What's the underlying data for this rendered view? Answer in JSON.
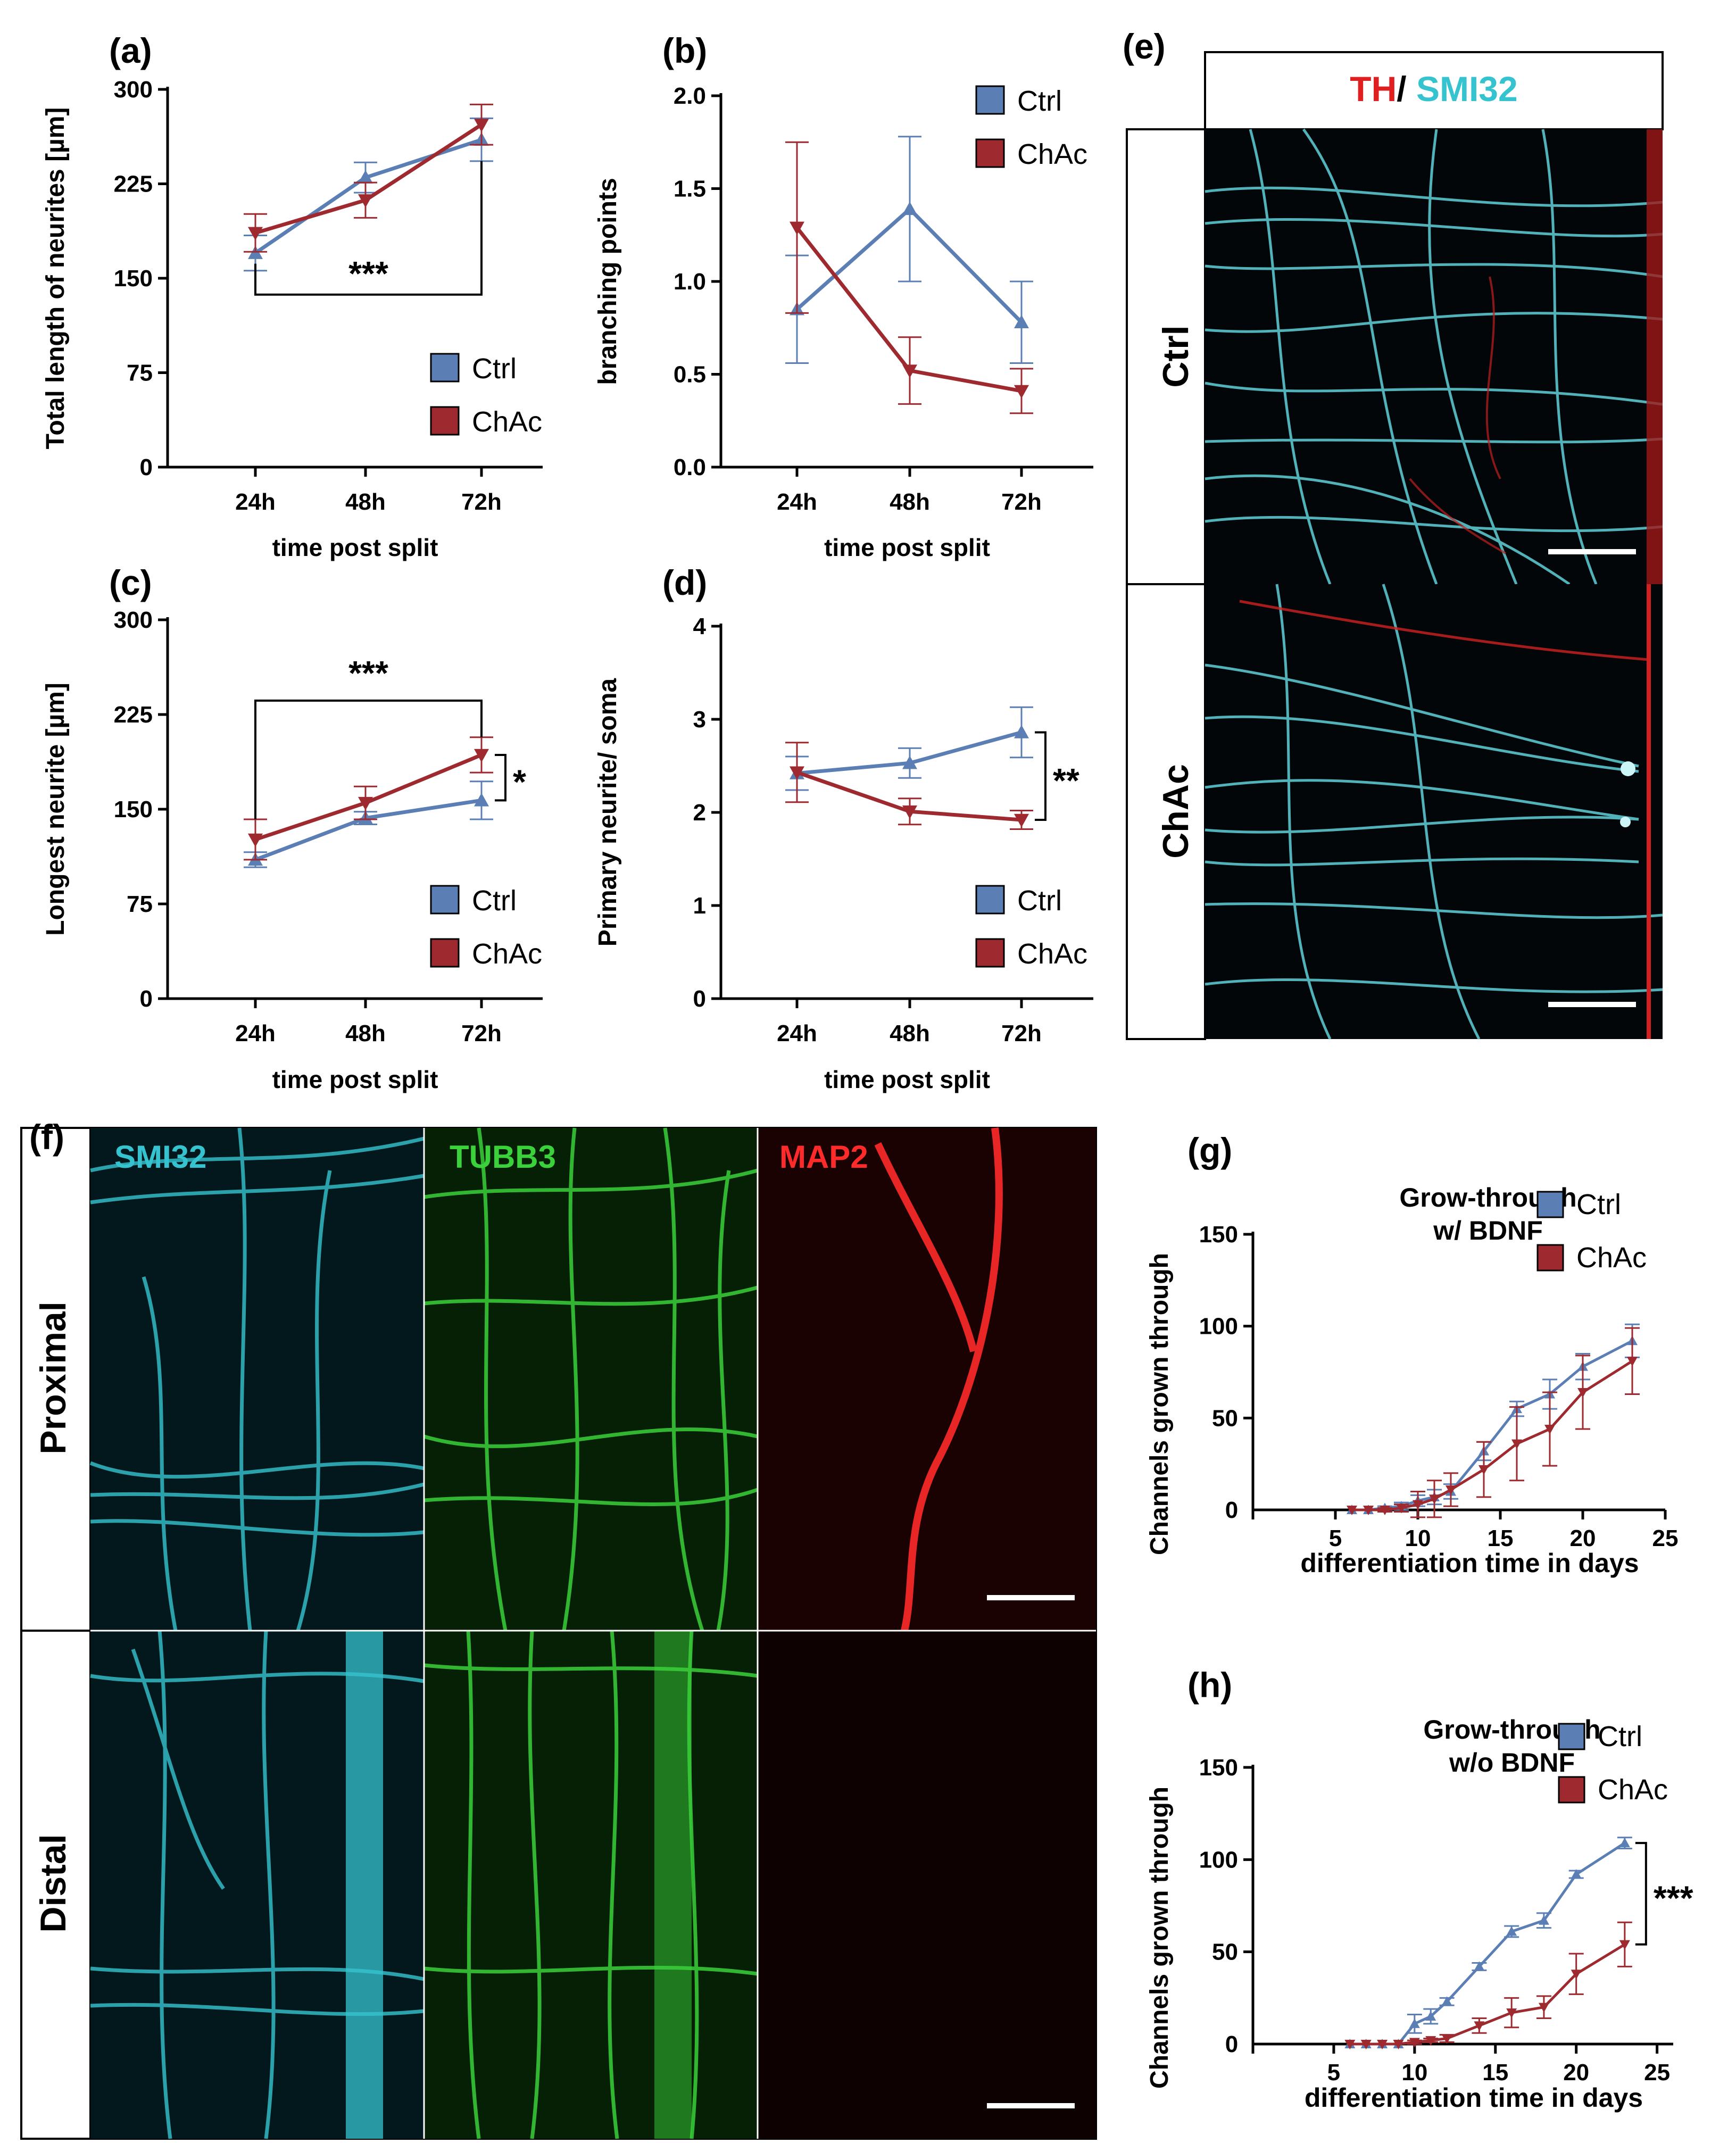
{
  "colors": {
    "ctrl": "#5b7fb5",
    "chac": "#9e2a2f",
    "axis": "#000000",
    "smi32": "#35c4cf",
    "tubb3": "#3ad13a",
    "map2": "#ff2a2a",
    "th": "#e02020"
  },
  "legend": {
    "ctrl": "Ctrl",
    "chac": "ChAc"
  },
  "chart_data": [
    {
      "id": "a",
      "panel_label": "(a)",
      "type": "line",
      "xlabel": "time post split",
      "ylabel": "Total length of neurites [µm]",
      "categories": [
        "24h",
        "48h",
        "72h"
      ],
      "ylim": [
        0,
        300
      ],
      "yticks": [
        "0",
        "75",
        "150",
        "225",
        "300"
      ],
      "ytick_values": [
        0,
        75,
        150,
        225,
        300
      ],
      "series": [
        {
          "name": "Ctrl",
          "values": [
            170,
            230,
            260
          ],
          "errors": [
            14,
            12,
            17
          ]
        },
        {
          "name": "ChAc",
          "values": [
            186,
            212,
            272
          ],
          "errors": [
            15,
            14,
            16
          ]
        }
      ],
      "annotations": [
        {
          "text": "***",
          "kind": "bracket-bottom",
          "from": 0,
          "to": 2,
          "y": 137
        }
      ]
    },
    {
      "id": "b",
      "panel_label": "(b)",
      "type": "line",
      "xlabel": "time post split",
      "ylabel": "branching points",
      "categories": [
        "24h",
        "48h",
        "72h"
      ],
      "ylim": [
        0,
        2.0
      ],
      "yticks": [
        "0.0",
        "0.5",
        "1.0",
        "1.5",
        "2.0"
      ],
      "ytick_values": [
        0,
        0.5,
        1.0,
        1.5,
        2.0
      ],
      "series": [
        {
          "name": "Ctrl",
          "values": [
            0.85,
            1.39,
            0.78
          ],
          "errors": [
            0.29,
            0.39,
            0.22
          ]
        },
        {
          "name": "ChAc",
          "values": [
            1.29,
            0.52,
            0.41
          ],
          "errors": [
            0.46,
            0.18,
            0.12
          ]
        }
      ],
      "annotations": []
    },
    {
      "id": "c",
      "panel_label": "(c)",
      "type": "line",
      "xlabel": "time post split",
      "ylabel": "Longest neurite [µm]",
      "categories": [
        "24h",
        "48h",
        "72h"
      ],
      "ylim": [
        0,
        300
      ],
      "yticks": [
        "0",
        "75",
        "150",
        "225",
        "300"
      ],
      "ytick_values": [
        0,
        75,
        150,
        225,
        300
      ],
      "series": [
        {
          "name": "Ctrl",
          "values": [
            110,
            143,
            157
          ],
          "errors": [
            6,
            5,
            15
          ]
        },
        {
          "name": "ChAc",
          "values": [
            126,
            155,
            193
          ],
          "errors": [
            16,
            13,
            14
          ]
        }
      ],
      "annotations": [
        {
          "text": "***",
          "kind": "bracket-top",
          "from": 0,
          "to": 2,
          "y": 236
        },
        {
          "text": "*",
          "kind": "bracket-right",
          "x": 2,
          "y1": 157,
          "y2": 193
        }
      ]
    },
    {
      "id": "d",
      "panel_label": "(d)",
      "type": "line",
      "xlabel": "time post split",
      "ylabel": "Primary neurite/ soma",
      "categories": [
        "24h",
        "48h",
        "72h"
      ],
      "ylim": [
        0,
        4
      ],
      "yticks": [
        "0",
        "1",
        "2",
        "3",
        "4"
      ],
      "ytick_values": [
        0,
        1,
        2,
        3,
        4
      ],
      "series": [
        {
          "name": "Ctrl",
          "values": [
            2.42,
            2.53,
            2.86
          ],
          "errors": [
            0.18,
            0.16,
            0.27
          ]
        },
        {
          "name": "ChAc",
          "values": [
            2.43,
            2.01,
            1.92
          ],
          "errors": [
            0.32,
            0.14,
            0.1
          ]
        }
      ],
      "annotations": [
        {
          "text": "**",
          "kind": "bracket-right",
          "x": 2,
          "y1": 1.92,
          "y2": 2.86
        }
      ]
    },
    {
      "id": "g",
      "panel_label": "(g)",
      "type": "line",
      "title": [
        "Grow-through",
        "w/ BDNF"
      ],
      "xlabel": "differentiation time in days",
      "ylabel": "Channels grown through",
      "xlim": [
        0,
        25
      ],
      "ylim": [
        0,
        150
      ],
      "xticks": [
        "0",
        "5",
        "10",
        "15",
        "20",
        "25"
      ],
      "xtick_values": [
        0,
        5,
        10,
        15,
        20,
        25
      ],
      "yticks": [
        "50",
        "100",
        "150"
      ],
      "ytick_values": [
        50,
        100,
        150
      ],
      "series": [
        {
          "name": "Ctrl",
          "x": [
            6,
            7,
            8,
            9,
            10,
            11,
            12,
            14,
            16,
            18,
            20,
            23
          ],
          "values": [
            0,
            0,
            1,
            2,
            5,
            7,
            10,
            32,
            55,
            63,
            78,
            92
          ],
          "errors": [
            0,
            0,
            1,
            2,
            3,
            4,
            4,
            5,
            4,
            8,
            7,
            9
          ]
        },
        {
          "name": "ChAc",
          "x": [
            6,
            7,
            8,
            9,
            10,
            11,
            12,
            14,
            16,
            18,
            20,
            23
          ],
          "values": [
            0,
            0,
            0,
            1,
            3,
            6,
            11,
            22,
            36,
            44,
            64,
            81
          ],
          "errors": [
            0,
            0,
            1,
            2,
            7,
            10,
            9,
            15,
            20,
            20,
            20,
            18
          ]
        }
      ],
      "annotations": []
    },
    {
      "id": "h",
      "panel_label": "(h)",
      "type": "line",
      "title": [
        "Grow-through",
        "w/o BDNF"
      ],
      "xlabel": "differentiation time in days",
      "ylabel": "Channels grown through",
      "xlim": [
        0,
        26
      ],
      "ylim": [
        0,
        150
      ],
      "xticks": [
        "0",
        "5",
        "10",
        "15",
        "20",
        "25"
      ],
      "xtick_values": [
        0,
        5,
        10,
        15,
        20,
        25
      ],
      "yticks": [
        "50",
        "100",
        "150"
      ],
      "ytick_values": [
        50,
        100,
        150
      ],
      "series": [
        {
          "name": "Ctrl",
          "x": [
            6,
            7,
            8,
            9,
            10,
            11,
            12,
            14,
            16,
            18,
            20,
            23
          ],
          "values": [
            0,
            0,
            0,
            0,
            11,
            15,
            23,
            42,
            61,
            67,
            92,
            109
          ],
          "errors": [
            0,
            0,
            0,
            0,
            5,
            4,
            2,
            2,
            3,
            4,
            2,
            3
          ]
        },
        {
          "name": "ChAc",
          "x": [
            6,
            7,
            8,
            9,
            10,
            11,
            12,
            14,
            16,
            18,
            20,
            23
          ],
          "values": [
            0,
            0,
            0,
            0,
            1,
            2,
            3,
            10,
            17,
            20,
            38,
            54
          ],
          "errors": [
            0,
            0,
            0,
            0,
            1,
            1,
            2,
            4,
            8,
            6,
            11,
            12
          ]
        }
      ],
      "annotations": [
        {
          "text": "***",
          "kind": "bracket-right",
          "x": 23,
          "y1": 54,
          "y2": 109
        }
      ]
    }
  ],
  "panel_e": {
    "label": "(e)",
    "header_th": "TH",
    "header_sep": "/",
    "header_smi32": " SMI32",
    "rows": [
      "Ctrl",
      "ChAc"
    ]
  },
  "panel_f": {
    "label": "(f)",
    "columns": [
      "SMI32",
      "TUBB3",
      "MAP2"
    ],
    "rows": [
      "Proximal",
      "Distal"
    ]
  }
}
